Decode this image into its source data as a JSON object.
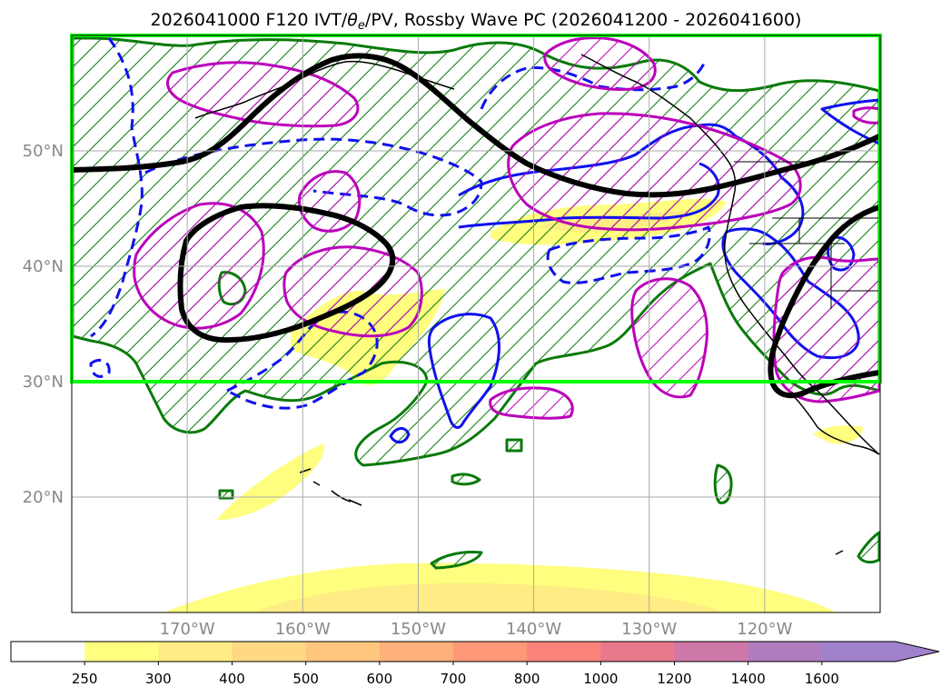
{
  "title": "2026041000 F120 IVT/θe/PV, Rossby Wave PC (2026041200 - 2026041600)",
  "title_parts": {
    "prefix": "2026041000 F120 IVT/",
    "theta": "θ",
    "sub": "e",
    "suffix": "/PV, Rossby Wave PC (2026041200 - 2026041600)"
  },
  "map": {
    "lat_range": [
      10,
      60
    ],
    "lon_range": [
      -180,
      -110
    ],
    "lat_ticks": [
      {
        "value": 20,
        "label": "20°N"
      },
      {
        "value": 30,
        "label": "30°N"
      },
      {
        "value": 40,
        "label": "40°N"
      },
      {
        "value": 50,
        "label": "50°N"
      }
    ],
    "lon_ticks": [
      {
        "value": -170,
        "label": "170°W"
      },
      {
        "value": -160,
        "label": "160°W"
      },
      {
        "value": -150,
        "label": "150°W"
      },
      {
        "value": -140,
        "label": "140°W"
      },
      {
        "value": -130,
        "label": "130°W"
      },
      {
        "value": -120,
        "label": "120°W"
      }
    ],
    "highlight_box": {
      "lat_min": 30,
      "lat_max": 60,
      "lon_min": -180,
      "lon_max": -110,
      "color": "#00ff00"
    },
    "colors": {
      "black_contour": "#000000",
      "green_contour": "#0a7a0a",
      "blue_contour": "#1010ee",
      "magenta_contour": "#bb00bb"
    }
  },
  "colorbar": {
    "levels": [
      "250",
      "300",
      "400",
      "500",
      "600",
      "700",
      "800",
      "1000",
      "1200",
      "1400",
      "1600"
    ],
    "colors": [
      "#ffffff",
      "#fffe7e",
      "#ffec84",
      "#ffd884",
      "#ffc67e",
      "#ffb07a",
      "#ff9878",
      "#fa837c",
      "#e8788c",
      "#cd78a8",
      "#b07cc0",
      "#a081cc"
    ],
    "extend": "max"
  }
}
